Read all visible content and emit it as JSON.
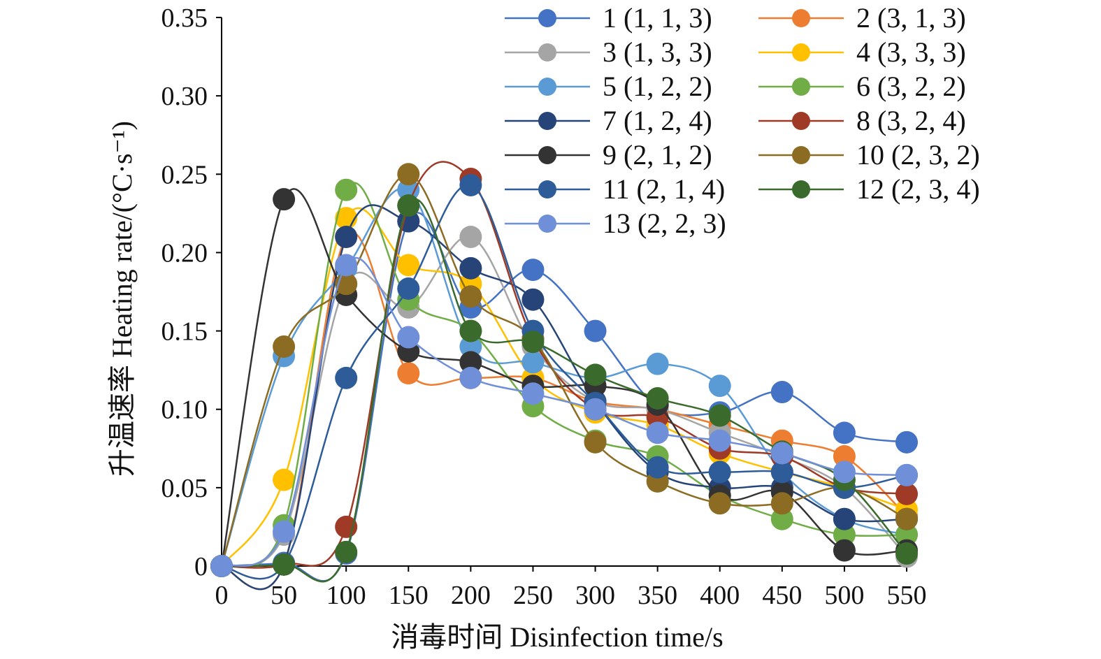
{
  "chart_data": {
    "type": "line",
    "xlabel": "消毒时间 Disinfection time/s",
    "ylabel": "升温速率 Heating rate/(°C·s⁻¹)",
    "x": [
      0,
      50,
      100,
      150,
      200,
      250,
      300,
      350,
      400,
      450,
      500,
      550
    ],
    "xlim": [
      0,
      550
    ],
    "ylim": [
      0,
      0.35
    ],
    "xticks": [
      "0",
      "50",
      "100",
      "150",
      "200",
      "250",
      "300",
      "350",
      "400",
      "450",
      "500",
      "550"
    ],
    "yticks": [
      "0",
      "0.05",
      "0.10",
      "0.15",
      "0.20",
      "0.25",
      "0.30",
      "0.35"
    ],
    "grid": false,
    "legend_position": "top-right",
    "series": [
      {
        "name": "1 (1, 1, 3)",
        "color": "#4472C4",
        "values": [
          0,
          0.002,
          0.008,
          0.22,
          0.165,
          0.189,
          0.15,
          0.102,
          0.098,
          0.111,
          0.085,
          0.079
        ]
      },
      {
        "name": "2 (3, 1, 3)",
        "color": "#ED7D31",
        "values": [
          0,
          0.001,
          0.21,
          0.123,
          0.12,
          0.12,
          0.105,
          0.1,
          0.09,
          0.08,
          0.07,
          0.032
        ]
      },
      {
        "name": "3 (1, 3, 3)",
        "color": "#A5A5A5",
        "values": [
          0,
          0.02,
          0.18,
          0.165,
          0.21,
          0.14,
          0.105,
          0.1,
          0.085,
          0.07,
          0.05,
          0.006
        ]
      },
      {
        "name": "4 (3, 3, 3)",
        "color": "#FFC000",
        "values": [
          0,
          0.055,
          0.222,
          0.192,
          0.18,
          0.12,
          0.098,
          0.09,
          0.072,
          0.06,
          0.05,
          0.036
        ]
      },
      {
        "name": "5 (1, 2, 2)",
        "color": "#5B9BD5",
        "values": [
          0,
          0.134,
          0.19,
          0.24,
          0.14,
          0.13,
          0.12,
          0.129,
          0.115,
          0.06,
          0.03,
          0.02
        ]
      },
      {
        "name": "6 (3, 2, 2)",
        "color": "#70AD47",
        "values": [
          0,
          0.026,
          0.24,
          0.17,
          0.15,
          0.102,
          0.08,
          0.07,
          0.045,
          0.03,
          0.02,
          0.02
        ]
      },
      {
        "name": "7 (1, 2, 4)",
        "color": "#264478",
        "values": [
          0,
          0.001,
          0.21,
          0.22,
          0.19,
          0.17,
          0.105,
          0.06,
          0.05,
          0.05,
          0.03,
          0.03
        ]
      },
      {
        "name": "8 (3, 2, 4)",
        "color": "#9E3A26",
        "values": [
          0,
          0.001,
          0.025,
          0.23,
          0.247,
          0.145,
          0.1,
          0.095,
          0.075,
          0.07,
          0.05,
          0.046
        ]
      },
      {
        "name": "9 (2, 1, 2)",
        "color": "#333333",
        "values": [
          0,
          0.234,
          0.173,
          0.137,
          0.13,
          0.115,
          0.115,
          0.103,
          0.045,
          0.047,
          0.01,
          0.01
        ]
      },
      {
        "name": "10 (2, 3, 2)",
        "color": "#8B6C22",
        "values": [
          0,
          0.14,
          0.18,
          0.25,
          0.172,
          0.145,
          0.079,
          0.054,
          0.04,
          0.04,
          0.05,
          0.03
        ]
      },
      {
        "name": "11 (2, 1, 4)",
        "color": "#2E5C99",
        "values": [
          0,
          0.001,
          0.12,
          0.177,
          0.243,
          0.15,
          0.104,
          0.063,
          0.06,
          0.06,
          0.05,
          0.058
        ]
      },
      {
        "name": "12 (2, 3, 4)",
        "color": "#3A6B2C",
        "values": [
          0,
          0.001,
          0.009,
          0.23,
          0.15,
          0.143,
          0.122,
          0.107,
          0.096,
          0.073,
          0.055,
          0.008
        ]
      },
      {
        "name": "13 (2, 2, 3)",
        "color": "#6F8FD8",
        "values": [
          0,
          0.022,
          0.192,
          0.146,
          0.12,
          0.11,
          0.1,
          0.085,
          0.08,
          0.072,
          0.06,
          0.058
        ]
      }
    ]
  }
}
